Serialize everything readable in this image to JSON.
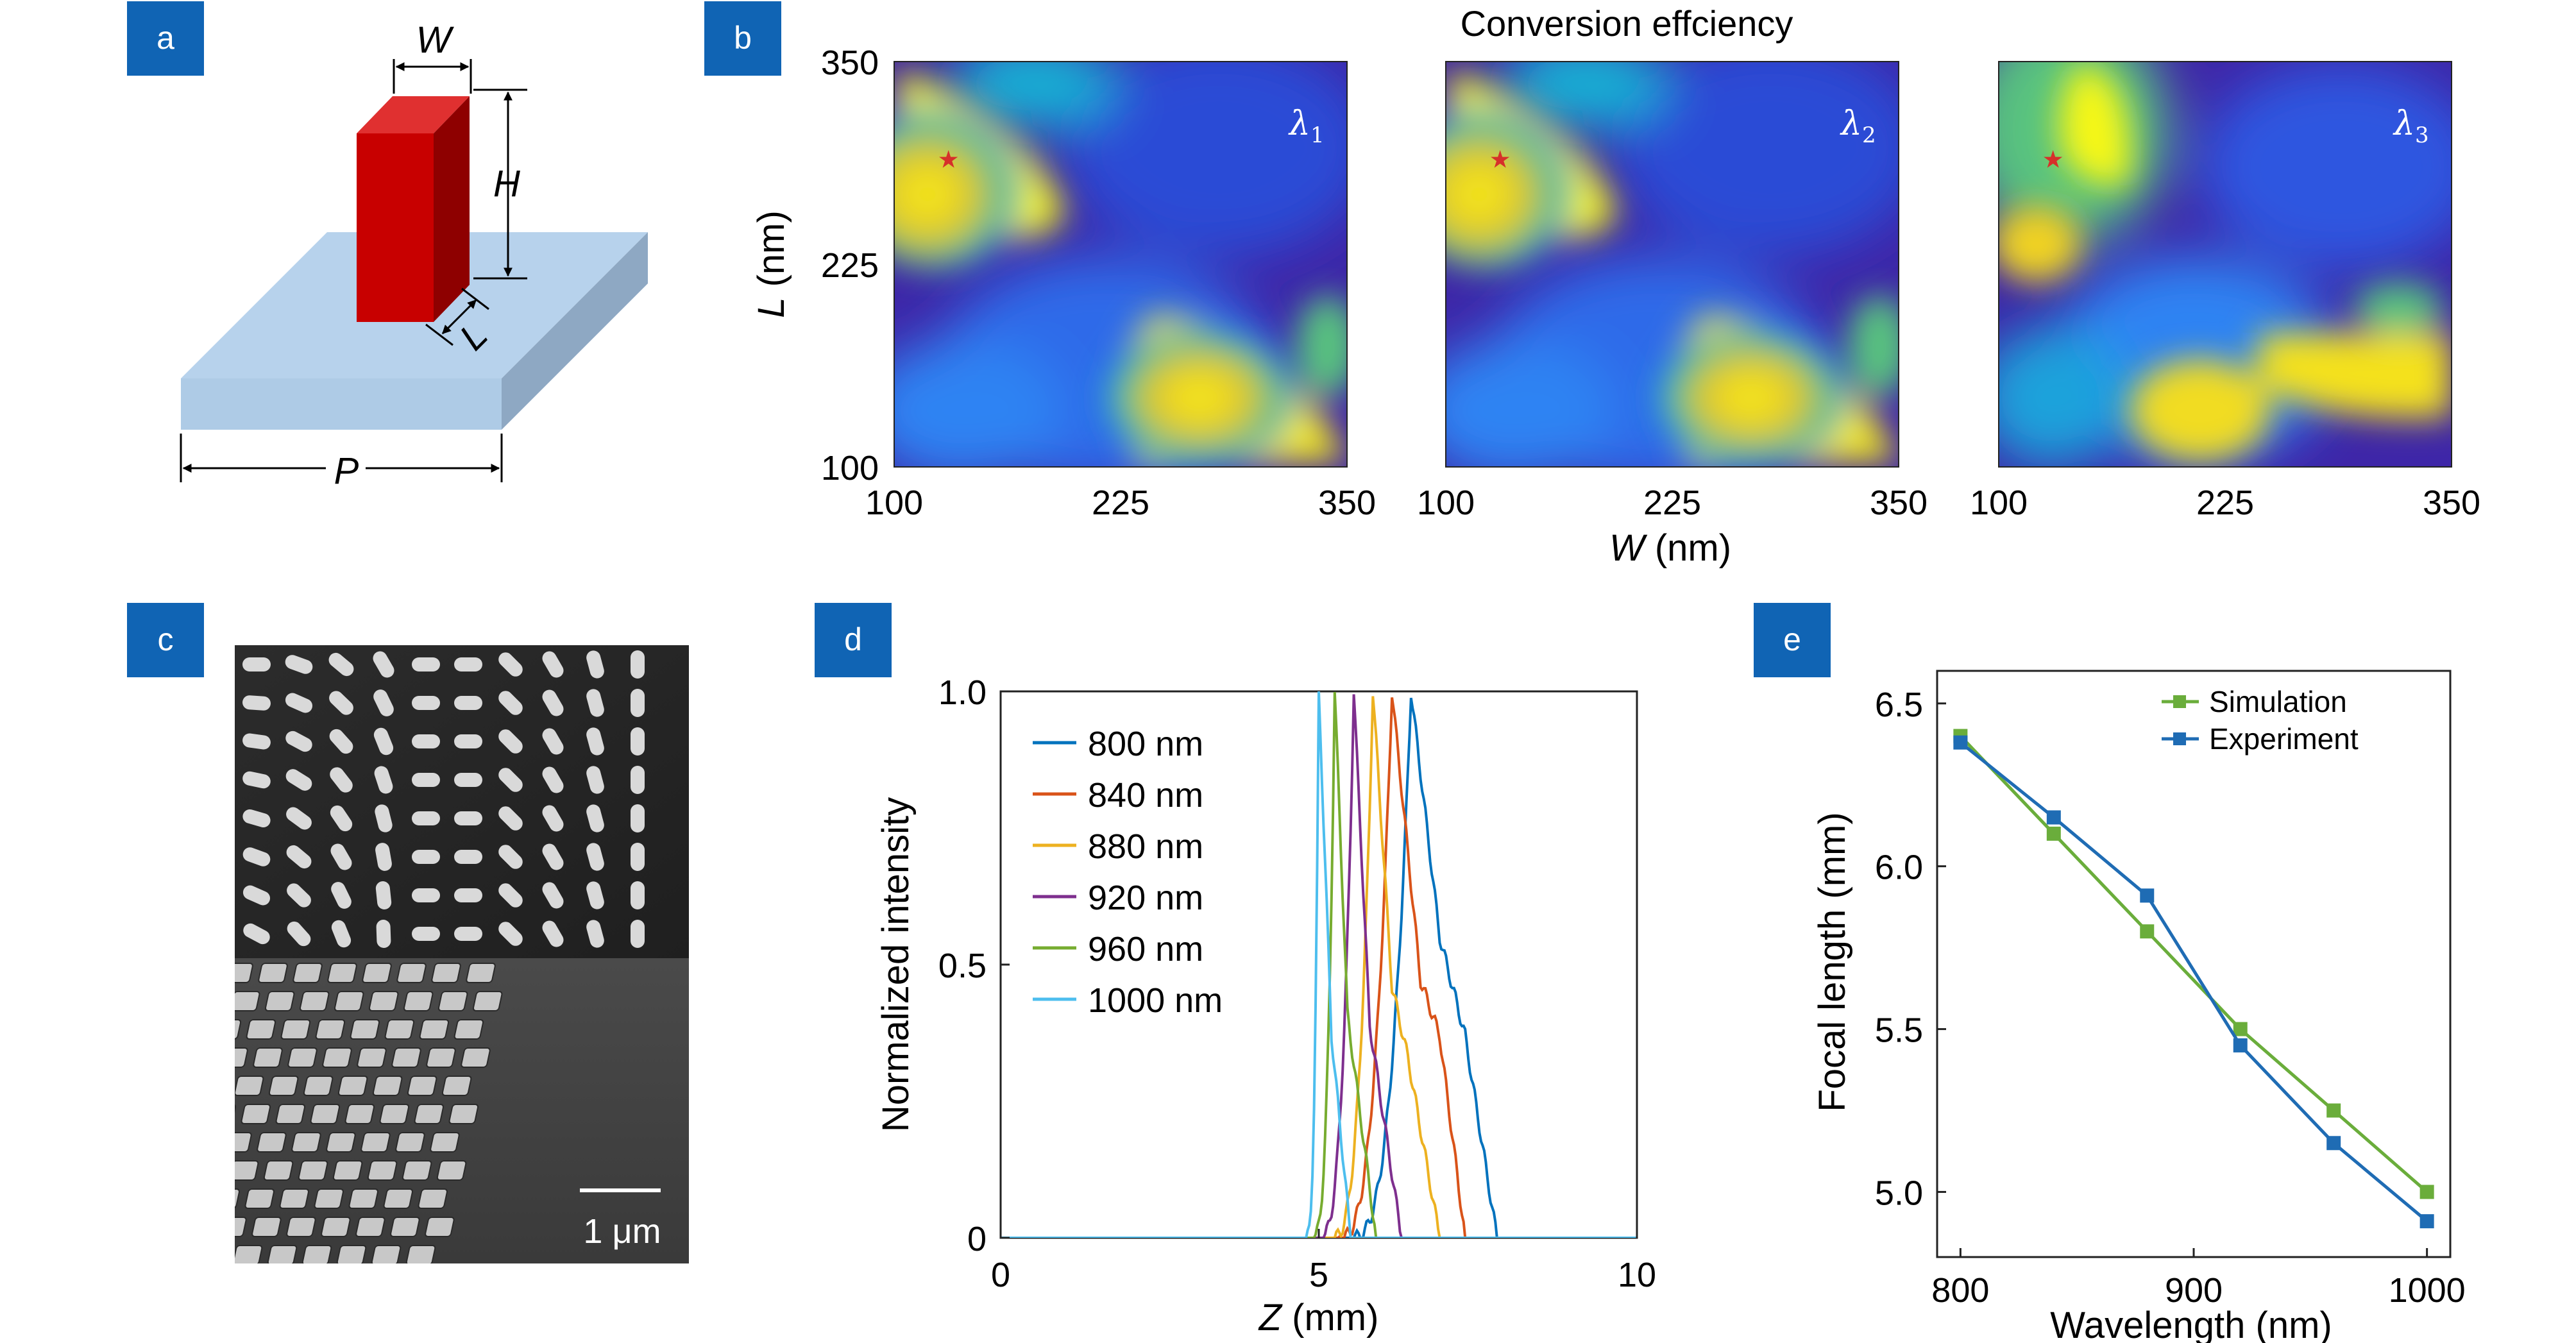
{
  "panels": {
    "a": {
      "letter": "a",
      "labels": {
        "W": "W",
        "H": "H",
        "L": "L",
        "P": "P"
      },
      "colors": {
        "pillar": "#c80000",
        "pillar_side": "#8e0000",
        "pillar_top": "#e03030",
        "substrate": "#b7d2ec",
        "substrate_side": "#8ea8c3"
      }
    },
    "b": {
      "letter": "b",
      "title": "Conversion effciency",
      "xlabel": "W",
      "xunit": " (nm)",
      "ylabel": "L",
      "yunit": " (nm)",
      "maps": [
        {
          "lambda": "λ",
          "sub": "1"
        },
        {
          "lambda": "λ",
          "sub": "2"
        },
        {
          "lambda": "λ",
          "sub": "3"
        }
      ],
      "colormap": [
        "#3e26a8",
        "#2f7cf5",
        "#15b0d4",
        "#59c37f",
        "#dcbc2c",
        "#f6f714"
      ]
    },
    "c": {
      "letter": "c",
      "scalebar": "1 μm"
    },
    "d": {
      "letter": "d",
      "xlabel_var": "Z",
      "xlabel_unit": " (mm)",
      "ylabel": "Normalized intensity"
    },
    "e": {
      "letter": "e",
      "xlabel": "Wavelength (nm)",
      "ylabel": "Focal length (mm)"
    }
  },
  "chart_data": [
    {
      "panel": "b",
      "type": "heatmap",
      "title": "Conversion effciency",
      "xlabel": "W (nm)",
      "ylabel": "L (nm)",
      "xlim": [
        100,
        350
      ],
      "ylim": [
        100,
        350
      ],
      "xticks": [
        "100",
        "225",
        "350"
      ],
      "yticks": [
        "100",
        "225",
        "350"
      ],
      "maps": [
        "λ1",
        "λ2",
        "λ3"
      ],
      "optimum_marker": {
        "W": 130,
        "L": 290
      }
    },
    {
      "panel": "d",
      "type": "line",
      "xlabel": "Z (mm)",
      "ylabel": "Normalized intensity",
      "xlim": [
        0,
        10
      ],
      "ylim": [
        0,
        1
      ],
      "xticks": [
        "0",
        "5",
        "10"
      ],
      "yticks": [
        "0",
        "0.5",
        "1.0"
      ],
      "legend_position": "top-left",
      "series": [
        {
          "name": "800 nm",
          "color": "#0072bd",
          "peak_z": 6.45,
          "onset_z": 5.5,
          "end_z": 7.8,
          "shoulders": [
            [
              6.9,
              0.55
            ],
            [
              7.3,
              0.37
            ]
          ]
        },
        {
          "name": "840 nm",
          "color": "#d95319",
          "peak_z": 6.15,
          "onset_z": 5.3,
          "end_z": 7.3,
          "shoulders": [
            [
              6.6,
              0.47
            ],
            [
              6.9,
              0.37
            ]
          ]
        },
        {
          "name": "880 nm",
          "color": "#edb120",
          "peak_z": 5.85,
          "onset_z": 5.2,
          "end_z": 6.9,
          "shoulders": [
            [
              6.15,
              0.46
            ],
            [
              6.4,
              0.33
            ]
          ]
        },
        {
          "name": "920 nm",
          "color": "#7e2f8e",
          "peak_z": 5.55,
          "onset_z": 5.0,
          "end_z": 6.3,
          "shoulders": [
            [
              5.8,
              0.39
            ]
          ]
        },
        {
          "name": "960 nm",
          "color": "#77ac30",
          "peak_z": 5.25,
          "onset_z": 4.9,
          "end_z": 5.9,
          "shoulders": [
            [
              5.45,
              0.41
            ]
          ]
        },
        {
          "name": "1000 nm",
          "color": "#4dbeee",
          "peak_z": 5.0,
          "onset_z": 4.8,
          "end_z": 5.5,
          "shoulders": [
            [
              5.2,
              0.37
            ]
          ]
        }
      ]
    },
    {
      "panel": "e",
      "type": "line",
      "xlabel": "Wavelength (nm)",
      "ylabel": "Focal length (mm)",
      "xlim": [
        790,
        1010
      ],
      "ylim": [
        4.8,
        6.6
      ],
      "xticks": [
        "800",
        "900",
        "1000"
      ],
      "yticks": [
        "5.0",
        "5.5",
        "6.0",
        "6.5"
      ],
      "legend_position": "top-right",
      "categories": [
        800,
        840,
        880,
        920,
        960,
        1000
      ],
      "series": [
        {
          "name": "Simulation",
          "color": "#6aad3b",
          "values": [
            6.4,
            6.1,
            5.8,
            5.5,
            5.25,
            5.0
          ]
        },
        {
          "name": "Experiment",
          "color": "#1f6cb4",
          "values": [
            6.38,
            6.15,
            5.91,
            5.45,
            5.15,
            4.91
          ]
        }
      ]
    }
  ]
}
